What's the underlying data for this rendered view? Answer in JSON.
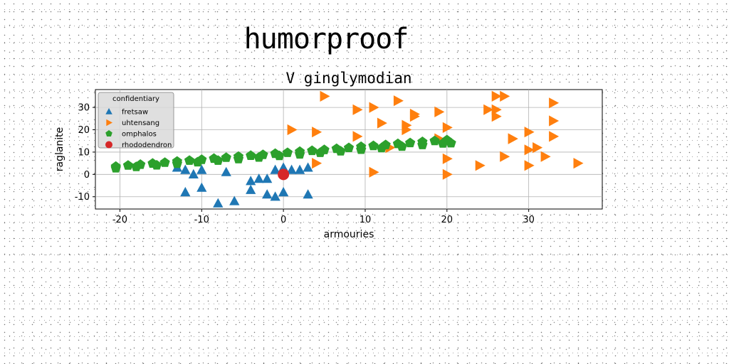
{
  "header": {
    "title": "humorproof"
  },
  "colors": {
    "fretsaw": "#1f77b4",
    "uhtensang": "#ff7f0e",
    "omphalos": "#2ca02c",
    "rhododendron": "#d62728"
  },
  "chart_data": {
    "type": "scatter",
    "title": "V ginglymodian",
    "xlabel": "armouries",
    "ylabel": "raglanite",
    "xlim": [
      -23,
      39
    ],
    "ylim": [
      -15.5,
      38
    ],
    "xticks": [
      -20,
      -10,
      0,
      10,
      20,
      30
    ],
    "yticks": [
      -10,
      0,
      10,
      20,
      30
    ],
    "grid": true,
    "legend": {
      "title": "confidentiary",
      "placement": "top-left"
    },
    "series": [
      {
        "name": "fretsaw",
        "marker": "triangle-up",
        "points": [
          [
            -13,
            3
          ],
          [
            -12,
            2
          ],
          [
            -11,
            0
          ],
          [
            -10,
            2
          ],
          [
            -12,
            -8
          ],
          [
            -10,
            -6
          ],
          [
            -7,
            1
          ],
          [
            -8,
            -13
          ],
          [
            -6,
            -12
          ],
          [
            -4,
            -3
          ],
          [
            -3,
            -2
          ],
          [
            -4,
            -7
          ],
          [
            -2,
            -2
          ],
          [
            -2,
            -9
          ],
          [
            -1,
            -10
          ],
          [
            -1,
            2
          ],
          [
            0,
            -8
          ],
          [
            0,
            3
          ],
          [
            1,
            2
          ],
          [
            2,
            2
          ],
          [
            3,
            3
          ],
          [
            3,
            -9
          ]
        ]
      },
      {
        "name": "uhtensang",
        "marker": "triangle-right",
        "points": [
          [
            5,
            35
          ],
          [
            9,
            29
          ],
          [
            11,
            30
          ],
          [
            12,
            23
          ],
          [
            14,
            33
          ],
          [
            15,
            22
          ],
          [
            15,
            20
          ],
          [
            16,
            27
          ],
          [
            16,
            26
          ],
          [
            19,
            28
          ],
          [
            20,
            21
          ],
          [
            19,
            16
          ],
          [
            9,
            17
          ],
          [
            1,
            20
          ],
          [
            4,
            19
          ],
          [
            4,
            5
          ],
          [
            11,
            1
          ],
          [
            13,
            12
          ],
          [
            20,
            0
          ],
          [
            24,
            4
          ],
          [
            25,
            29
          ],
          [
            26,
            29
          ],
          [
            26,
            26
          ],
          [
            26,
            35
          ],
          [
            27,
            35
          ],
          [
            28,
            16
          ],
          [
            28,
            16
          ],
          [
            27,
            8
          ],
          [
            30,
            4
          ],
          [
            30,
            11
          ],
          [
            30,
            19
          ],
          [
            31,
            12
          ],
          [
            32,
            8
          ],
          [
            33,
            32
          ],
          [
            33,
            24
          ],
          [
            33,
            17
          ],
          [
            36,
            5
          ],
          [
            20,
            7
          ]
        ]
      },
      {
        "name": "omphalos",
        "marker": "pentagon",
        "points": [
          [
            -20.5,
            3.5
          ],
          [
            -19.0,
            4.0
          ],
          [
            -17.5,
            4.4
          ],
          [
            -16.0,
            4.9
          ],
          [
            -14.5,
            5.3
          ],
          [
            -13.0,
            5.8
          ],
          [
            -11.5,
            6.2
          ],
          [
            -10.0,
            6.6
          ],
          [
            -8.5,
            7.1
          ],
          [
            -7.0,
            7.5
          ],
          [
            -5.5,
            8.0
          ],
          [
            -4.0,
            8.4
          ],
          [
            -2.5,
            8.8
          ],
          [
            -1.0,
            9.3
          ],
          [
            0.5,
            9.7
          ],
          [
            2.0,
            10.2
          ],
          [
            3.5,
            10.6
          ],
          [
            5.0,
            11.0
          ],
          [
            6.5,
            11.5
          ],
          [
            8.0,
            11.9
          ],
          [
            9.5,
            12.4
          ],
          [
            11.0,
            12.8
          ],
          [
            12.5,
            13.2
          ],
          [
            14.0,
            13.7
          ],
          [
            15.5,
            14.1
          ],
          [
            17.0,
            14.6
          ],
          [
            18.5,
            15.0
          ],
          [
            20.0,
            15.4
          ],
          [
            -20.5,
            2.8
          ],
          [
            -18.0,
            3.4
          ],
          [
            -15.5,
            4.1
          ],
          [
            -13.0,
            4.8
          ],
          [
            -10.5,
            5.5
          ],
          [
            -8.0,
            6.2
          ],
          [
            -5.5,
            6.9
          ],
          [
            -3.0,
            7.6
          ],
          [
            -0.5,
            8.3
          ],
          [
            2.0,
            9.0
          ],
          [
            4.5,
            9.7
          ],
          [
            7.0,
            10.4
          ],
          [
            9.5,
            11.1
          ],
          [
            12.0,
            11.8
          ],
          [
            14.5,
            12.5
          ],
          [
            17.0,
            13.2
          ],
          [
            19.5,
            13.9
          ],
          [
            20.5,
            14.0
          ]
        ]
      },
      {
        "name": "rhododendron",
        "marker": "circle",
        "points": [
          [
            0,
            0
          ]
        ]
      }
    ]
  }
}
